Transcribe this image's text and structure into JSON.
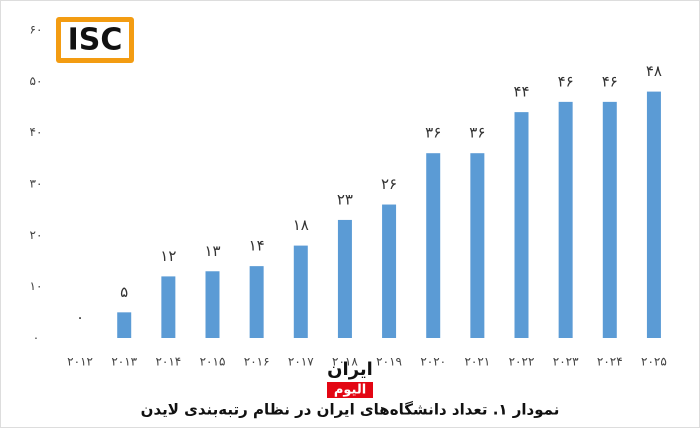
{
  "logo": "ISC",
  "watermark": {
    "top": "ایران",
    "bottom": "الیوم"
  },
  "chart_data": {
    "type": "bar",
    "title": "نمودار ۱. تعداد دانشگاه‌های ایران در نظام رتبه‌بندی لایدن",
    "categories": [
      "۲۰۱۲",
      "۲۰۱۳",
      "۲۰۱۴",
      "۲۰۱۵",
      "۲۰۱۶",
      "۲۰۱۷",
      "۲۰۱۸",
      "۲۰۱۹",
      "۲۰۲۰",
      "۲۰۲۱",
      "۲۰۲۲",
      "۲۰۲۳",
      "۲۰۲۴",
      "۲۰۲۵"
    ],
    "values": [
      0,
      5,
      12,
      13,
      14,
      18,
      23,
      26,
      36,
      36,
      44,
      46,
      46,
      48
    ],
    "value_labels": [
      "۰",
      "۵",
      "۱۲",
      "۱۳",
      "۱۴",
      "۱۸",
      "۲۳",
      "۲۶",
      "۳۶",
      "۳۶",
      "۴۴",
      "۴۶",
      "۴۶",
      "۴۸"
    ],
    "color": "#5b9bd5",
    "ylim": [
      0,
      60
    ],
    "yticks": [
      {
        "value": 0,
        "label": "۰"
      },
      {
        "value": 10,
        "label": "۱۰"
      },
      {
        "value": 20,
        "label": "۲۰"
      },
      {
        "value": 30,
        "label": "۳۰"
      },
      {
        "value": 40,
        "label": "۴۰"
      },
      {
        "value": 50,
        "label": "۵۰"
      },
      {
        "value": 60,
        "label": "۶۰"
      }
    ],
    "grid": false
  }
}
